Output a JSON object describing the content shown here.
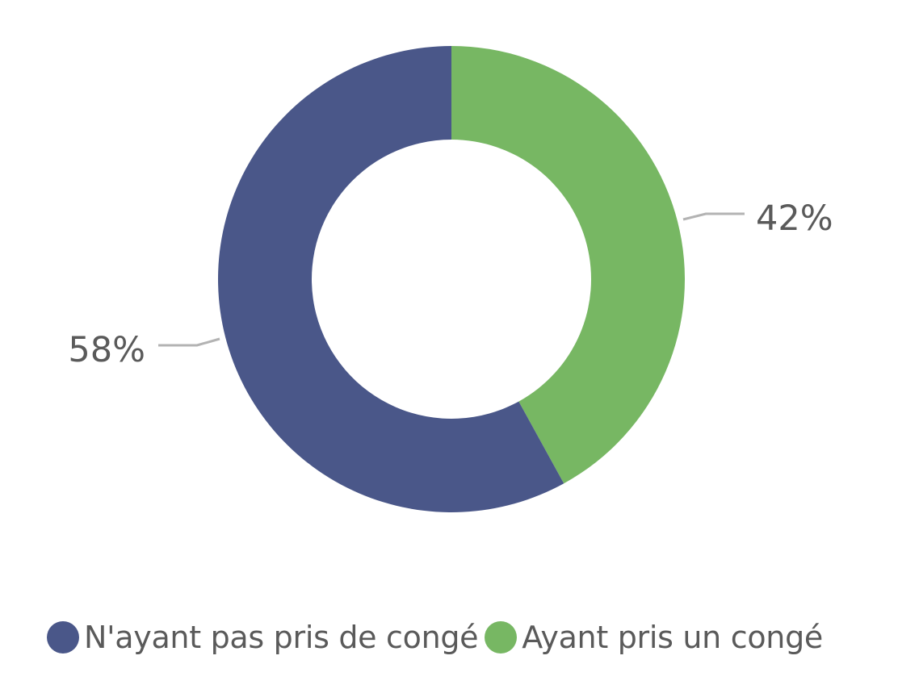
{
  "chart_data": {
    "type": "pie",
    "variant": "donut",
    "categories": [
      "N'ayant pas pris de congé",
      "Ayant pris un congé"
    ],
    "values": [
      58,
      42
    ],
    "data_labels": [
      "58%",
      "42%"
    ],
    "colors": [
      "#4a5789",
      "#77b763"
    ],
    "legend_placement": "bottom",
    "leader_line_color": "#b3b3b3"
  }
}
